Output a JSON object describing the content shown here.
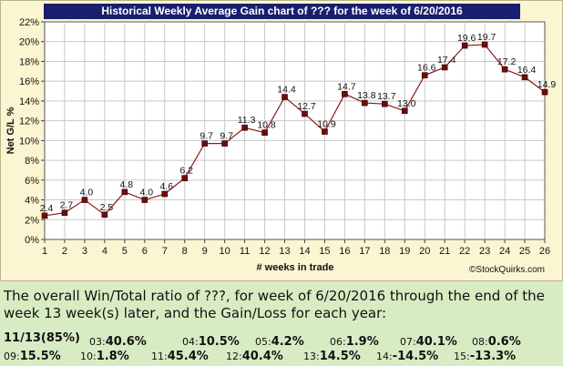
{
  "chart_data": {
    "type": "line",
    "title": "Historical Weekly Average Gain chart of ??? for the week of 6/20/2016",
    "xlabel": "# weeks in trade",
    "ylabel": "Net G/L %",
    "x": [
      1,
      2,
      3,
      4,
      5,
      6,
      7,
      8,
      9,
      10,
      11,
      12,
      13,
      14,
      15,
      16,
      17,
      18,
      19,
      20,
      21,
      22,
      23,
      24,
      25,
      26
    ],
    "values": [
      2.4,
      2.7,
      4.0,
      2.5,
      4.8,
      4.0,
      4.6,
      6.2,
      9.7,
      9.7,
      11.3,
      10.8,
      14.4,
      12.7,
      10.9,
      14.7,
      13.8,
      13.7,
      13.0,
      16.6,
      17.4,
      19.6,
      19.7,
      17.2,
      16.4,
      14.9
    ],
    "data_labels": [
      "2.4",
      "2.7",
      "4.0",
      "2.5",
      "4.8",
      "4.0",
      "4.6",
      "6.2",
      "9.7",
      "9.7",
      "11.3",
      "10.8",
      "14.4",
      "12.7",
      "10.9",
      "14.7",
      "13.8",
      "13.7",
      "13.0",
      "16.6",
      "17.4",
      "19.6",
      "19.7",
      "17.2",
      "16.4",
      "14.9"
    ],
    "yticks": [
      "0%",
      "2%",
      "4%",
      "6%",
      "8%",
      "10%",
      "12%",
      "14%",
      "16%",
      "18%",
      "20%",
      "22%"
    ],
    "ylim": [
      0,
      22
    ],
    "xlim": [
      1,
      26
    ],
    "grid": true,
    "line_color": "#8b1a1a",
    "marker_color": "#6b0d0d",
    "watermark": "©StockQuirks.com"
  },
  "summary": {
    "text": "The overall Win/Total ratio of ???, for week of 6/20/2016 through the end of the week 13 week(s) later, and the Gain/Loss for each year:",
    "win_total": "11/13(85%)"
  },
  "yearly": [
    {
      "year": "03:",
      "value": "40.6%"
    },
    {
      "year": "04:",
      "value": "10.5%"
    },
    {
      "year": "05:",
      "value": "4.2%"
    },
    {
      "year": "06:",
      "value": "1.9%"
    },
    {
      "year": "07:",
      "value": "40.1%"
    },
    {
      "year": "08:",
      "value": "0.6%"
    },
    {
      "year": "09:",
      "value": "15.5%"
    },
    {
      "year": "10:",
      "value": "1.8%"
    },
    {
      "year": "11:",
      "value": "45.4%"
    },
    {
      "year": "12:",
      "value": "40.4%"
    },
    {
      "year": "13:",
      "value": "14.5%"
    },
    {
      "year": "14:",
      "value": "-14.5%"
    },
    {
      "year": "15:",
      "value": "-13.3%"
    }
  ],
  "colors": {
    "title_bg": "#1a1e6e",
    "plot_bg": "#ffffff",
    "panel_bg": "#fbf5d1",
    "page_bg": "#d8ecc4"
  }
}
